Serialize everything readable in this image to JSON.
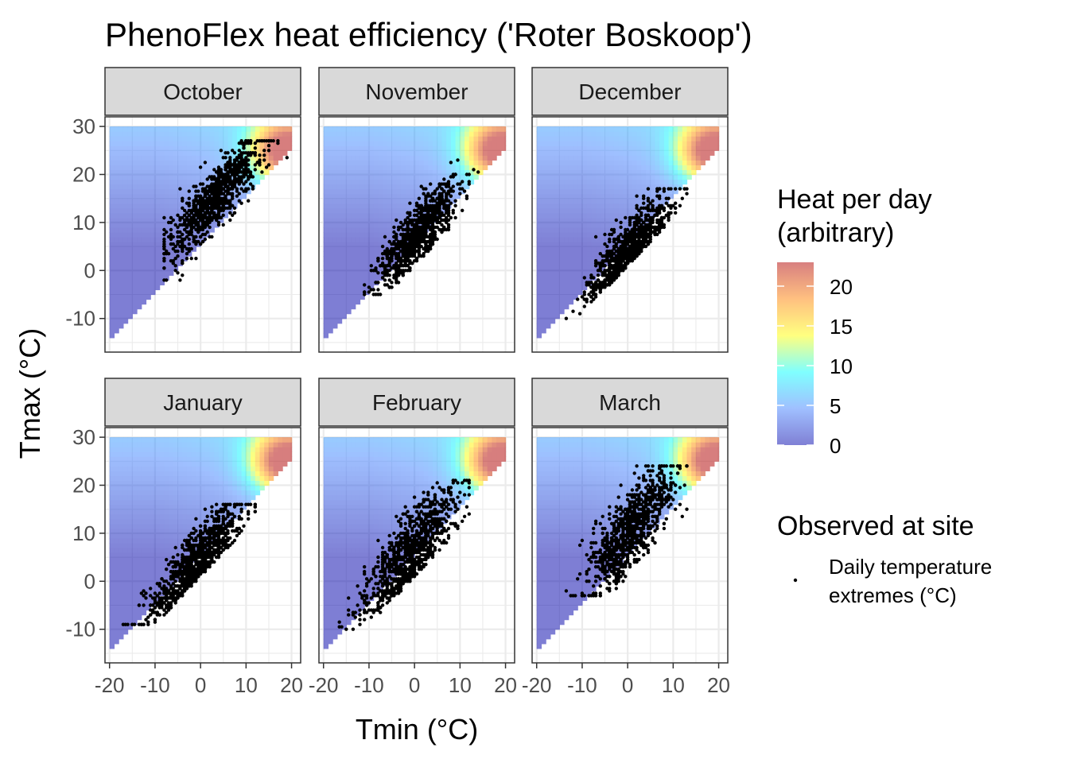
{
  "chart_data": {
    "type": "heatmap",
    "title": "PhenoFlex heat efficiency ('Roter Boskoop')",
    "xlabel": "Tmin (°C)",
    "ylabel": "Tmax (°C)",
    "facet_by": "month",
    "xlim": [
      -21,
      22
    ],
    "ylim": [
      -17,
      32
    ],
    "x_ticks": [
      -20,
      -10,
      0,
      10,
      20
    ],
    "y_ticks": [
      -10,
      0,
      10,
      20,
      30
    ],
    "tile_grid": {
      "tmin_range": [
        -19.5,
        19.5
      ],
      "tmax_range": [
        -14.5,
        29.5
      ],
      "step": 1,
      "condition": "tmax > tmin + 5",
      "alpha": 0.5
    },
    "fill_legend": {
      "title_lines": [
        "Heat per day",
        "(arbitrary)"
      ],
      "ticks": [
        0,
        5,
        10,
        15,
        20
      ],
      "limits": [
        0,
        23
      ],
      "palette": [
        "#0000aa",
        "#4080ff",
        "#00ffff",
        "#ffff00",
        "#ff8000",
        "#b00000"
      ],
      "placement": "right"
    },
    "point_legend": {
      "title": "Observed at site",
      "label_lines": [
        "Daily temperature",
        "extremes (°C)"
      ]
    },
    "grid": true,
    "panels": [
      {
        "month": "October",
        "tmin_mean": 3,
        "tmin_sd": 5,
        "tmin_range": [
          -8,
          19
        ],
        "tmax_mean": 15,
        "tmax_sd": 4.5,
        "tmax_range": [
          -2,
          27
        ]
      },
      {
        "month": "November",
        "tmin_mean": 1,
        "tmin_sd": 4.5,
        "tmin_range": [
          -11,
          15
        ],
        "tmax_mean": 8,
        "tmax_sd": 4.5,
        "tmax_range": [
          -5,
          23
        ]
      },
      {
        "month": "December",
        "tmin_mean": 0,
        "tmin_sd": 4.5,
        "tmin_range": [
          -17,
          13
        ],
        "tmax_mean": 4,
        "tmax_sd": 4.5,
        "tmax_range": [
          -12,
          17
        ]
      },
      {
        "month": "January",
        "tmin_mean": -1,
        "tmin_sd": 5,
        "tmin_range": [
          -17,
          12
        ],
        "tmax_mean": 4,
        "tmax_sd": 4.5,
        "tmax_range": [
          -9,
          16
        ]
      },
      {
        "month": "February",
        "tmin_mean": -1,
        "tmin_sd": 5,
        "tmin_range": [
          -18,
          12
        ],
        "tmax_mean": 6,
        "tmax_sd": 5.5,
        "tmax_range": [
          -10,
          21
        ]
      },
      {
        "month": "March",
        "tmin_mean": 1,
        "tmin_sd": 4.5,
        "tmin_range": [
          -18,
          13
        ],
        "tmax_mean": 11,
        "tmax_sd": 6,
        "tmax_range": [
          -3,
          24
        ]
      }
    ]
  }
}
